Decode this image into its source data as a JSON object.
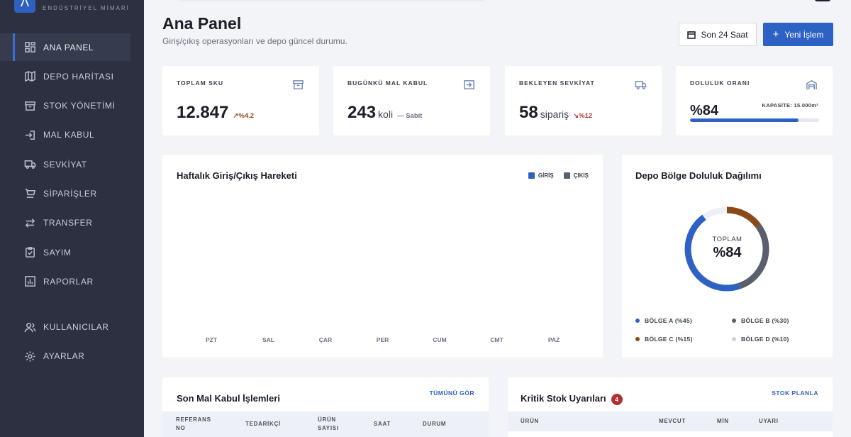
{
  "brand": {
    "logo_glyph": "Λ",
    "subtitle": "ENDÜSTRİYEL MİMARİ"
  },
  "sidebar": {
    "items": [
      {
        "label": "ANA PANEL",
        "icon": "dashboard-icon",
        "active": true
      },
      {
        "label": "DEPO HARİTASI",
        "icon": "map-icon"
      },
      {
        "label": "STOK YÖNETİMİ",
        "icon": "archive-box-icon"
      },
      {
        "label": "MAL KABUL",
        "icon": "login-arrow-icon"
      },
      {
        "label": "SEVKİYAT",
        "icon": "truck-icon"
      },
      {
        "label": "SİPARİŞLER",
        "icon": "cart-icon"
      },
      {
        "label": "TRANSFER",
        "icon": "swap-arrows-icon"
      },
      {
        "label": "SAYIM",
        "icon": "clipboard-check-icon"
      },
      {
        "label": "RAPORLAR",
        "icon": "report-chart-icon"
      }
    ],
    "bottom_items": [
      {
        "label": "KULLANICILAR",
        "icon": "users-icon"
      },
      {
        "label": "AYARLAR",
        "icon": "gear-icon"
      }
    ]
  },
  "header": {
    "title": "Ana Panel",
    "subtitle": "Giriş/çıkış operasyonları ve depo güncel durumu.",
    "range_button": "Son 24 Saat",
    "new_button": "Yeni İşlem"
  },
  "stats": [
    {
      "label": "TOPLAM SKU",
      "value": "12.847",
      "unit": "",
      "delta": "%4.2",
      "delta_dir": "up",
      "icon": "archive-box-icon"
    },
    {
      "label": "BUGÜNKÜ MAL KABUL",
      "value": "243",
      "unit": "koli",
      "delta": "Sabit",
      "delta_dir": "flat",
      "icon": "login-arrow-icon"
    },
    {
      "label": "BEKLEYEN SEVKİYAT",
      "value": "58",
      "unit": "sipariş",
      "delta": "%12",
      "delta_dir": "down",
      "icon": "truck-icon"
    },
    {
      "label": "DOLULUK ORANI",
      "value": "%84",
      "capacity": "KAPASİTE: 15.000m²",
      "fill": 0.84,
      "icon": "warehouse-icon"
    }
  ],
  "weekly_chart": {
    "title": "Haftalık Giriş/Çıkış Hareketi",
    "legend": [
      {
        "label": "GİRİŞ",
        "color": "#2d61c4"
      },
      {
        "label": "ÇIKIŞ",
        "color": "#5a5f6e"
      }
    ],
    "days": [
      "PZT",
      "SAL",
      "ÇAR",
      "PER",
      "CUM",
      "CMT",
      "PAZ"
    ]
  },
  "zone_chart": {
    "title": "Depo Bölge Doluluk Dağılımı",
    "center_label": "TOPLAM",
    "center_value": "%84",
    "zones": [
      {
        "label": "BÖLGE A (%45)",
        "percent": 45,
        "color": "#2d61c4"
      },
      {
        "label": "BÖLGE B (%30)",
        "percent": 30,
        "color": "#5a5f6e"
      },
      {
        "label": "BÖLGE C (%15)",
        "percent": 15,
        "color": "#8a4a18"
      },
      {
        "label": "BÖLGE D (%10)",
        "percent": 10,
        "color": "#cfd2da"
      }
    ],
    "track_color": "#eef0f7"
  },
  "receipts": {
    "title": "Son Mal Kabul İşlemleri",
    "link": "TÜMÜNÜ GÖR",
    "columns": [
      "REFERANS NO",
      "TEDARİKÇİ",
      "ÜRÜN SAYISI",
      "SAAT",
      "DURUM"
    ]
  },
  "critical": {
    "title": "Kritik Stok Uyarıları",
    "badge": "4",
    "link": "STOK PLANLA",
    "columns": [
      "ÜRÜN",
      "MEVCUT",
      "MİN",
      "UYARI"
    ]
  }
}
